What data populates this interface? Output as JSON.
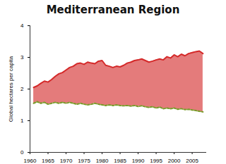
{
  "chart_data": {
    "type": "area",
    "title": "Mediterranean Region",
    "y_label": "Global hectares per capita",
    "x": [
      1961,
      1962,
      1963,
      1964,
      1965,
      1966,
      1967,
      1968,
      1969,
      1970,
      1971,
      1972,
      1973,
      1974,
      1975,
      1976,
      1977,
      1978,
      1979,
      1980,
      1981,
      1982,
      1983,
      1984,
      1985,
      1986,
      1987,
      1988,
      1989,
      1990,
      1991,
      1992,
      1993,
      1994,
      1995,
      1996,
      1997,
      1998,
      1999,
      2000,
      2001,
      2002,
      2003,
      2004,
      2005,
      2006,
      2007,
      2008
    ],
    "series": [
      {
        "color": "#d42a2a",
        "line_style": "solid",
        "values": [
          2.05,
          2.1,
          2.18,
          2.25,
          2.22,
          2.3,
          2.4,
          2.48,
          2.52,
          2.6,
          2.68,
          2.72,
          2.8,
          2.82,
          2.78,
          2.85,
          2.82,
          2.8,
          2.88,
          2.9,
          2.75,
          2.72,
          2.68,
          2.72,
          2.7,
          2.75,
          2.82,
          2.85,
          2.9,
          2.92,
          2.95,
          2.9,
          2.85,
          2.88,
          2.92,
          2.95,
          2.92,
          3.02,
          2.98,
          3.08,
          3.02,
          3.1,
          3.05,
          3.12,
          3.15,
          3.18,
          3.2,
          3.12
        ]
      },
      {
        "color": "#7a9a2a",
        "line_style": "dashed",
        "values": [
          1.55,
          1.6,
          1.55,
          1.58,
          1.52,
          1.55,
          1.58,
          1.55,
          1.58,
          1.55,
          1.58,
          1.55,
          1.52,
          1.55,
          1.52,
          1.5,
          1.52,
          1.55,
          1.52,
          1.5,
          1.48,
          1.5,
          1.48,
          1.5,
          1.48,
          1.47,
          1.48,
          1.46,
          1.48,
          1.45,
          1.47,
          1.44,
          1.42,
          1.44,
          1.4,
          1.43,
          1.38,
          1.4,
          1.38,
          1.4,
          1.36,
          1.38,
          1.35,
          1.36,
          1.34,
          1.32,
          1.3,
          1.28
        ]
      }
    ],
    "xlim": [
      1960,
      2009
    ],
    "xticks": [
      1960,
      1965,
      1970,
      1975,
      1980,
      1985,
      1990,
      1995,
      2000,
      2005
    ],
    "ylim": [
      0,
      4
    ],
    "yticks": [
      0,
      1,
      2,
      3,
      4
    ],
    "grid": false
  }
}
